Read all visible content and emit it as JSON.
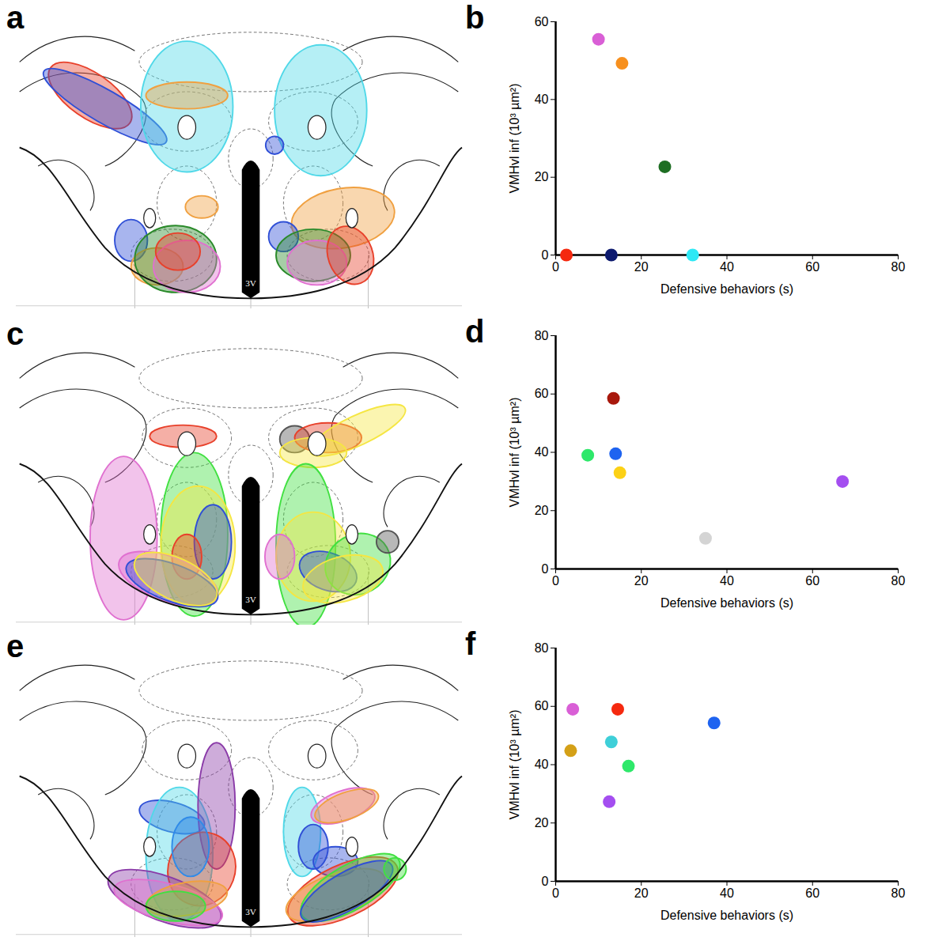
{
  "atlas_panels": [
    {
      "panel": "a",
      "label": "3V"
    },
    {
      "panel": "c",
      "label": "3V"
    },
    {
      "panel": "e",
      "label": "3V"
    }
  ],
  "chart_data": [
    {
      "panel": "b",
      "type": "scatter",
      "x_label": "Defensive behaviors (s)",
      "y_label": "VMHvl inf (10³ µm²)",
      "x": [
        10,
        15.5,
        25.5,
        2.5,
        13,
        32
      ],
      "values": [
        55.5,
        49.3,
        22.7,
        0,
        0,
        0
      ],
      "colors": [
        "#d95fd6",
        "#f7901e",
        "#1e6e23",
        "#f5290f",
        "#0d1a6e",
        "#2ee8f5"
      ],
      "xlim": [
        0,
        80
      ],
      "xticks": [
        0,
        20,
        40,
        60,
        80
      ],
      "ylim": [
        0,
        60
      ],
      "yticks": [
        0,
        20,
        40,
        60
      ]
    },
    {
      "panel": "d",
      "type": "scatter",
      "x_label": "Defensive behaviors (s)",
      "y_label": "VMHvl inf (10³ µm²)",
      "x": [
        7.5,
        13.5,
        14,
        15,
        35,
        67
      ],
      "values": [
        39,
        58.5,
        39.5,
        33,
        10.5,
        30
      ],
      "colors": [
        "#2ee86a",
        "#a8180c",
        "#1e63f0",
        "#fcd116",
        "#d4d4d4",
        "#a44ef0"
      ],
      "xlim": [
        0,
        80
      ],
      "xticks": [
        0,
        20,
        40,
        60,
        80
      ],
      "ylim": [
        0,
        80
      ],
      "yticks": [
        0,
        20,
        40,
        60,
        80
      ]
    },
    {
      "panel": "f",
      "type": "scatter",
      "x_label": "Defensive behaviors (s)",
      "y_label": "VMHvl inf (10³ µm²)",
      "x": [
        4,
        3.5,
        14.5,
        13,
        17,
        12.5,
        37
      ],
      "values": [
        59,
        44.8,
        59,
        47.8,
        39.5,
        27.3,
        54.3
      ],
      "colors": [
        "#d95fd6",
        "#d4a017",
        "#f5290f",
        "#3ecfd8",
        "#2ee86a",
        "#a44ef0",
        "#1e63f0"
      ],
      "xlim": [
        0,
        80
      ],
      "xticks": [
        0,
        20,
        40,
        60,
        80
      ],
      "ylim": [
        0,
        80
      ],
      "yticks": [
        0,
        20,
        40,
        60,
        80
      ]
    }
  ]
}
